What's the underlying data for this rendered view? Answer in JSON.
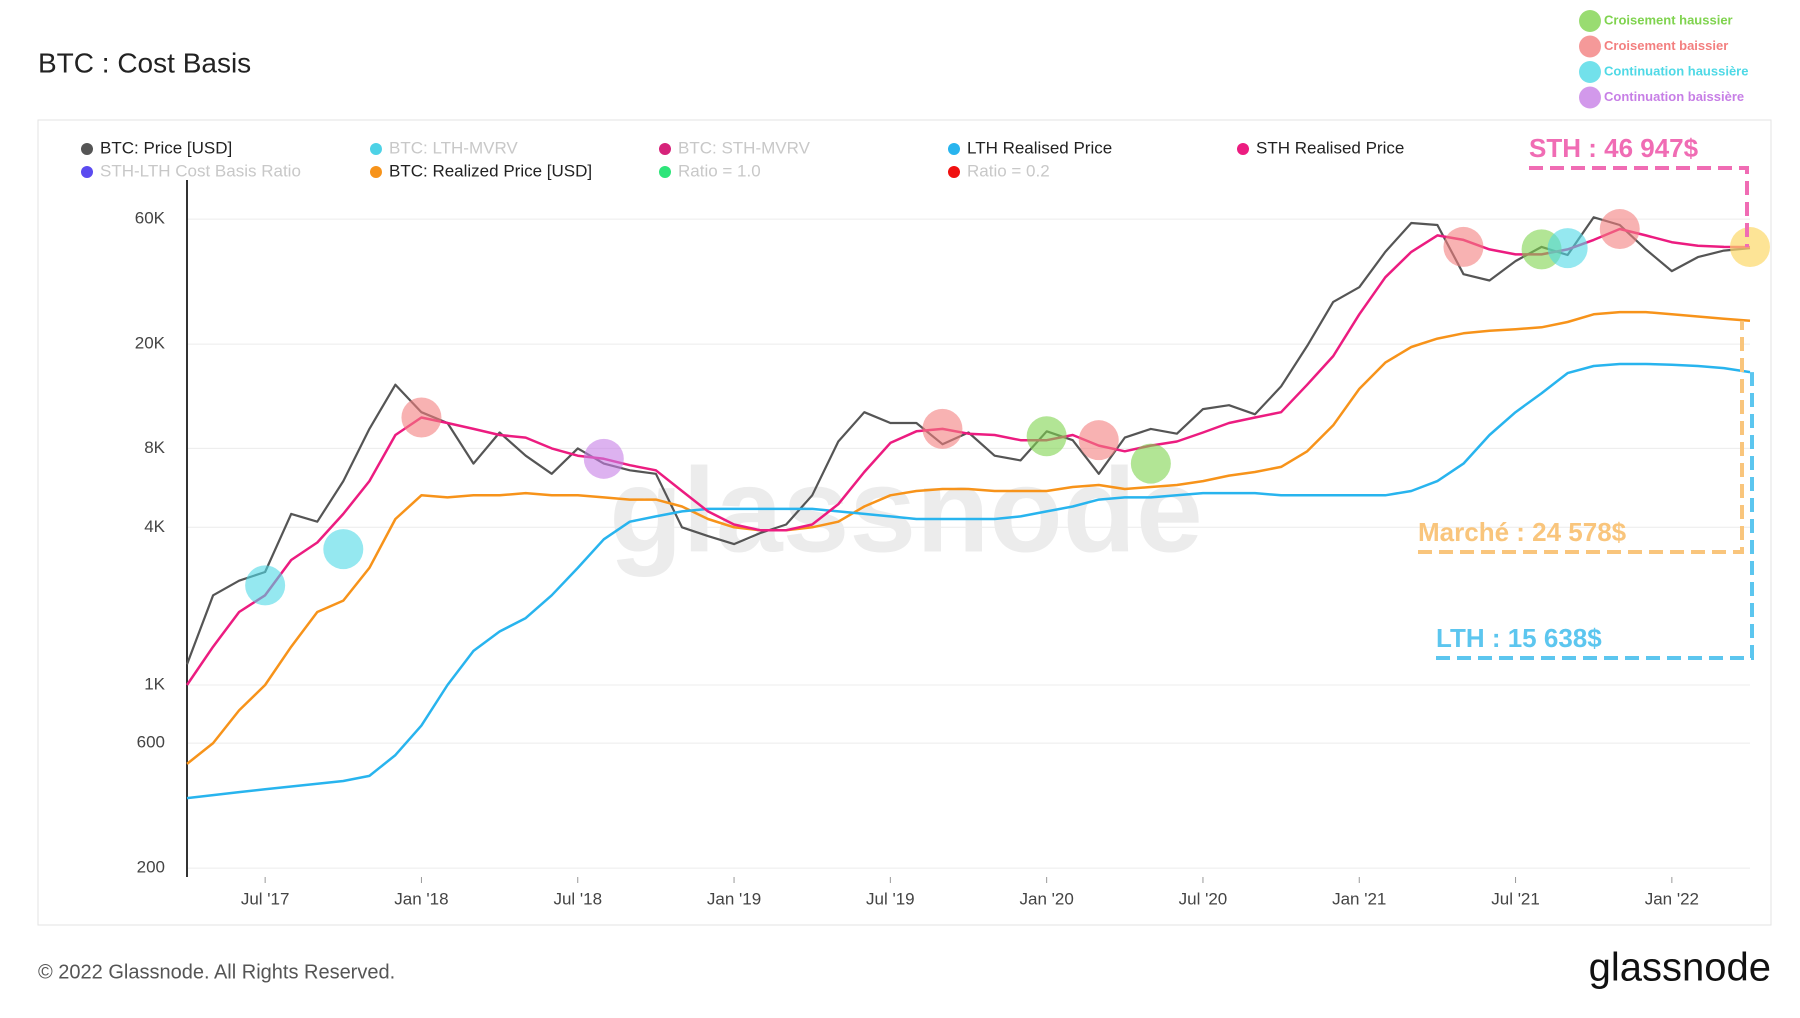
{
  "chart_data": {
    "type": "line",
    "title": "BTC : Cost Basis",
    "log_scale": true,
    "grid": true,
    "x": [
      "2017-04",
      "2017-05",
      "2017-06",
      "2017-07",
      "2017-08",
      "2017-09",
      "2017-10",
      "2017-11",
      "2017-12",
      "2018-01",
      "2018-02",
      "2018-03",
      "2018-04",
      "2018-05",
      "2018-06",
      "2018-07",
      "2018-08",
      "2018-09",
      "2018-10",
      "2018-11",
      "2018-12",
      "2019-01",
      "2019-02",
      "2019-03",
      "2019-04",
      "2019-05",
      "2019-06",
      "2019-07",
      "2019-08",
      "2019-09",
      "2019-10",
      "2019-11",
      "2019-12",
      "2020-01",
      "2020-02",
      "2020-03",
      "2020-04",
      "2020-05",
      "2020-06",
      "2020-07",
      "2020-08",
      "2020-09",
      "2020-10",
      "2020-11",
      "2020-12",
      "2021-01",
      "2021-02",
      "2021-03",
      "2021-04",
      "2021-05",
      "2021-06",
      "2021-07",
      "2021-08",
      "2021-09",
      "2021-10",
      "2021-11",
      "2021-12",
      "2022-01",
      "2022-02",
      "2022-03",
      "2022-04"
    ],
    "xlim": [
      "2017-04",
      "2022-04"
    ],
    "xticks": [
      {
        "value": "2017-07",
        "label": "Jul '17"
      },
      {
        "value": "2018-01",
        "label": "Jan '18"
      },
      {
        "value": "2018-07",
        "label": "Jul '18"
      },
      {
        "value": "2019-01",
        "label": "Jan '19"
      },
      {
        "value": "2019-07",
        "label": "Jul '19"
      },
      {
        "value": "2020-01",
        "label": "Jan '20"
      },
      {
        "value": "2020-07",
        "label": "Jul '20"
      },
      {
        "value": "2021-01",
        "label": "Jan '21"
      },
      {
        "value": "2021-07",
        "label": "Jul '21"
      },
      {
        "value": "2022-01",
        "label": "Jan '22"
      }
    ],
    "ylim": [
      185,
      81000
    ],
    "yticks": [
      200,
      600,
      {
        "value": 1000,
        "label": "1K"
      },
      {
        "value": 4000,
        "label": "4K"
      },
      {
        "value": 8000,
        "label": "8K"
      },
      {
        "value": 20000,
        "label": "20K"
      },
      {
        "value": 60000,
        "label": "60K"
      }
    ],
    "series": [
      {
        "name": "BTC: Price [USD]",
        "color": "#555555",
        "visible": true,
        "values": [
          1200,
          2200,
          2500,
          2700,
          4500,
          4200,
          6000,
          9500,
          14000,
          11000,
          10000,
          7000,
          9200,
          7500,
          6400,
          8000,
          7000,
          6600,
          6400,
          4000,
          3700,
          3450,
          3800,
          4100,
          5300,
          8500,
          11000,
          10000,
          10000,
          8300,
          9200,
          7500,
          7200,
          9300,
          8600,
          6400,
          8800,
          9500,
          9100,
          11300,
          11700,
          10800,
          13800,
          19700,
          29000,
          33000,
          45000,
          58000,
          57000,
          37000,
          35000,
          41500,
          47000,
          43800,
          61000,
          57000,
          46000,
          38000,
          43000,
          45500,
          46500
        ]
      },
      {
        "name": "BTC: LTH-MVRV",
        "color": "#4dd2e6",
        "visible": false
      },
      {
        "name": "BTC: STH-MVRV",
        "color": "#d6237a",
        "visible": false
      },
      {
        "name": "LTH Realised Price",
        "color": "#28b4ee",
        "visible": true,
        "values": [
          370,
          380,
          390,
          400,
          410,
          420,
          430,
          450,
          540,
          700,
          1000,
          1350,
          1600,
          1800,
          2200,
          2800,
          3600,
          4200,
          4400,
          4600,
          4700,
          4700,
          4700,
          4700,
          4700,
          4600,
          4500,
          4400,
          4300,
          4300,
          4300,
          4300,
          4400,
          4600,
          4800,
          5100,
          5200,
          5200,
          5300,
          5400,
          5400,
          5400,
          5300,
          5300,
          5300,
          5300,
          5300,
          5500,
          6000,
          7000,
          9000,
          11000,
          13000,
          15500,
          16500,
          16800,
          16800,
          16700,
          16500,
          16200,
          15638
        ]
      },
      {
        "name": "STH Realised Price",
        "color": "#ec1c80",
        "visible": true,
        "values": [
          1000,
          1400,
          1900,
          2200,
          3000,
          3500,
          4500,
          6000,
          9000,
          10500,
          10000,
          9500,
          9000,
          8800,
          8000,
          7500,
          7300,
          6900,
          6600,
          5500,
          4600,
          4100,
          3900,
          3900,
          4100,
          4900,
          6500,
          8400,
          9300,
          9500,
          9100,
          9000,
          8600,
          8600,
          9000,
          8200,
          7800,
          8200,
          8500,
          9200,
          10000,
          10500,
          11000,
          14000,
          18000,
          26000,
          36000,
          45000,
          52000,
          50000,
          46000,
          44000,
          44000,
          46000,
          50000,
          55000,
          52000,
          49000,
          47500,
          47000,
          46947
        ]
      },
      {
        "name": "STH-LTH Cost Basis Ratio",
        "color": "#5b4bf0",
        "visible": false
      },
      {
        "name": "BTC: Realized Price [USD]",
        "color": "#f7931a",
        "visible": true,
        "values": [
          500,
          600,
          800,
          1000,
          1400,
          1900,
          2100,
          2800,
          4300,
          5300,
          5200,
          5300,
          5300,
          5400,
          5300,
          5300,
          5200,
          5100,
          5100,
          4800,
          4300,
          4000,
          3900,
          3900,
          4000,
          4200,
          4800,
          5300,
          5500,
          5600,
          5600,
          5500,
          5500,
          5500,
          5700,
          5800,
          5600,
          5700,
          5800,
          6000,
          6300,
          6500,
          6800,
          7800,
          9800,
          13500,
          17000,
          19500,
          21000,
          22000,
          22500,
          22800,
          23200,
          24300,
          26000,
          26500,
          26500,
          26000,
          25500,
          25000,
          24578
        ]
      },
      {
        "name": "Ratio = 1.0",
        "color": "#2ee57a",
        "visible": false
      },
      {
        "name": "Ratio = 0.2",
        "color": "#f01010",
        "visible": false
      }
    ],
    "marker_kinds": [
      {
        "name": "Croisement haussier",
        "color": "#7fd34e"
      },
      {
        "name": "Croisement baissier",
        "color": "#f37f7f"
      },
      {
        "name": "Continuation haussière",
        "color": "#4fd9e6"
      },
      {
        "name": "Continuation baissière",
        "color": "#c77fe6"
      }
    ],
    "markers": [
      {
        "x": "2017-07",
        "y": 2400,
        "kind": 2
      },
      {
        "x": "2017-10",
        "y": 3300,
        "kind": 2
      },
      {
        "x": "2018-01",
        "y": 10500,
        "kind": 1
      },
      {
        "x": "2018-08",
        "y": 7300,
        "kind": 3
      },
      {
        "x": "2019-09",
        "y": 9500,
        "kind": 1
      },
      {
        "x": "2020-01",
        "y": 8900,
        "kind": 0
      },
      {
        "x": "2020-03",
        "y": 8600,
        "kind": 1
      },
      {
        "x": "2020-05",
        "y": 7000,
        "kind": 0
      },
      {
        "x": "2021-05",
        "y": 47000,
        "kind": 1
      },
      {
        "x": "2021-08",
        "y": 46000,
        "kind": 0
      },
      {
        "x": "2021-09",
        "y": 46500,
        "kind": 2
      },
      {
        "x": "2021-11",
        "y": 55000,
        "kind": 1
      }
    ],
    "highlight": {
      "x": "2022-04",
      "y": 46947,
      "color": "#fcd86a"
    },
    "annotations": [
      {
        "label": "STH : 46 947$",
        "value": 46947,
        "color": "#f06cb4"
      },
      {
        "label": "Marché : 24 578$",
        "value": 24578,
        "color": "#f9c57c"
      },
      {
        "label": "LTH : 15 638$",
        "value": 15638,
        "color": "#5cc6ef"
      }
    ],
    "watermark": "glassnode",
    "copyright": "© 2022 Glassnode. All Rights Reserved.",
    "logo": "glassnode"
  }
}
